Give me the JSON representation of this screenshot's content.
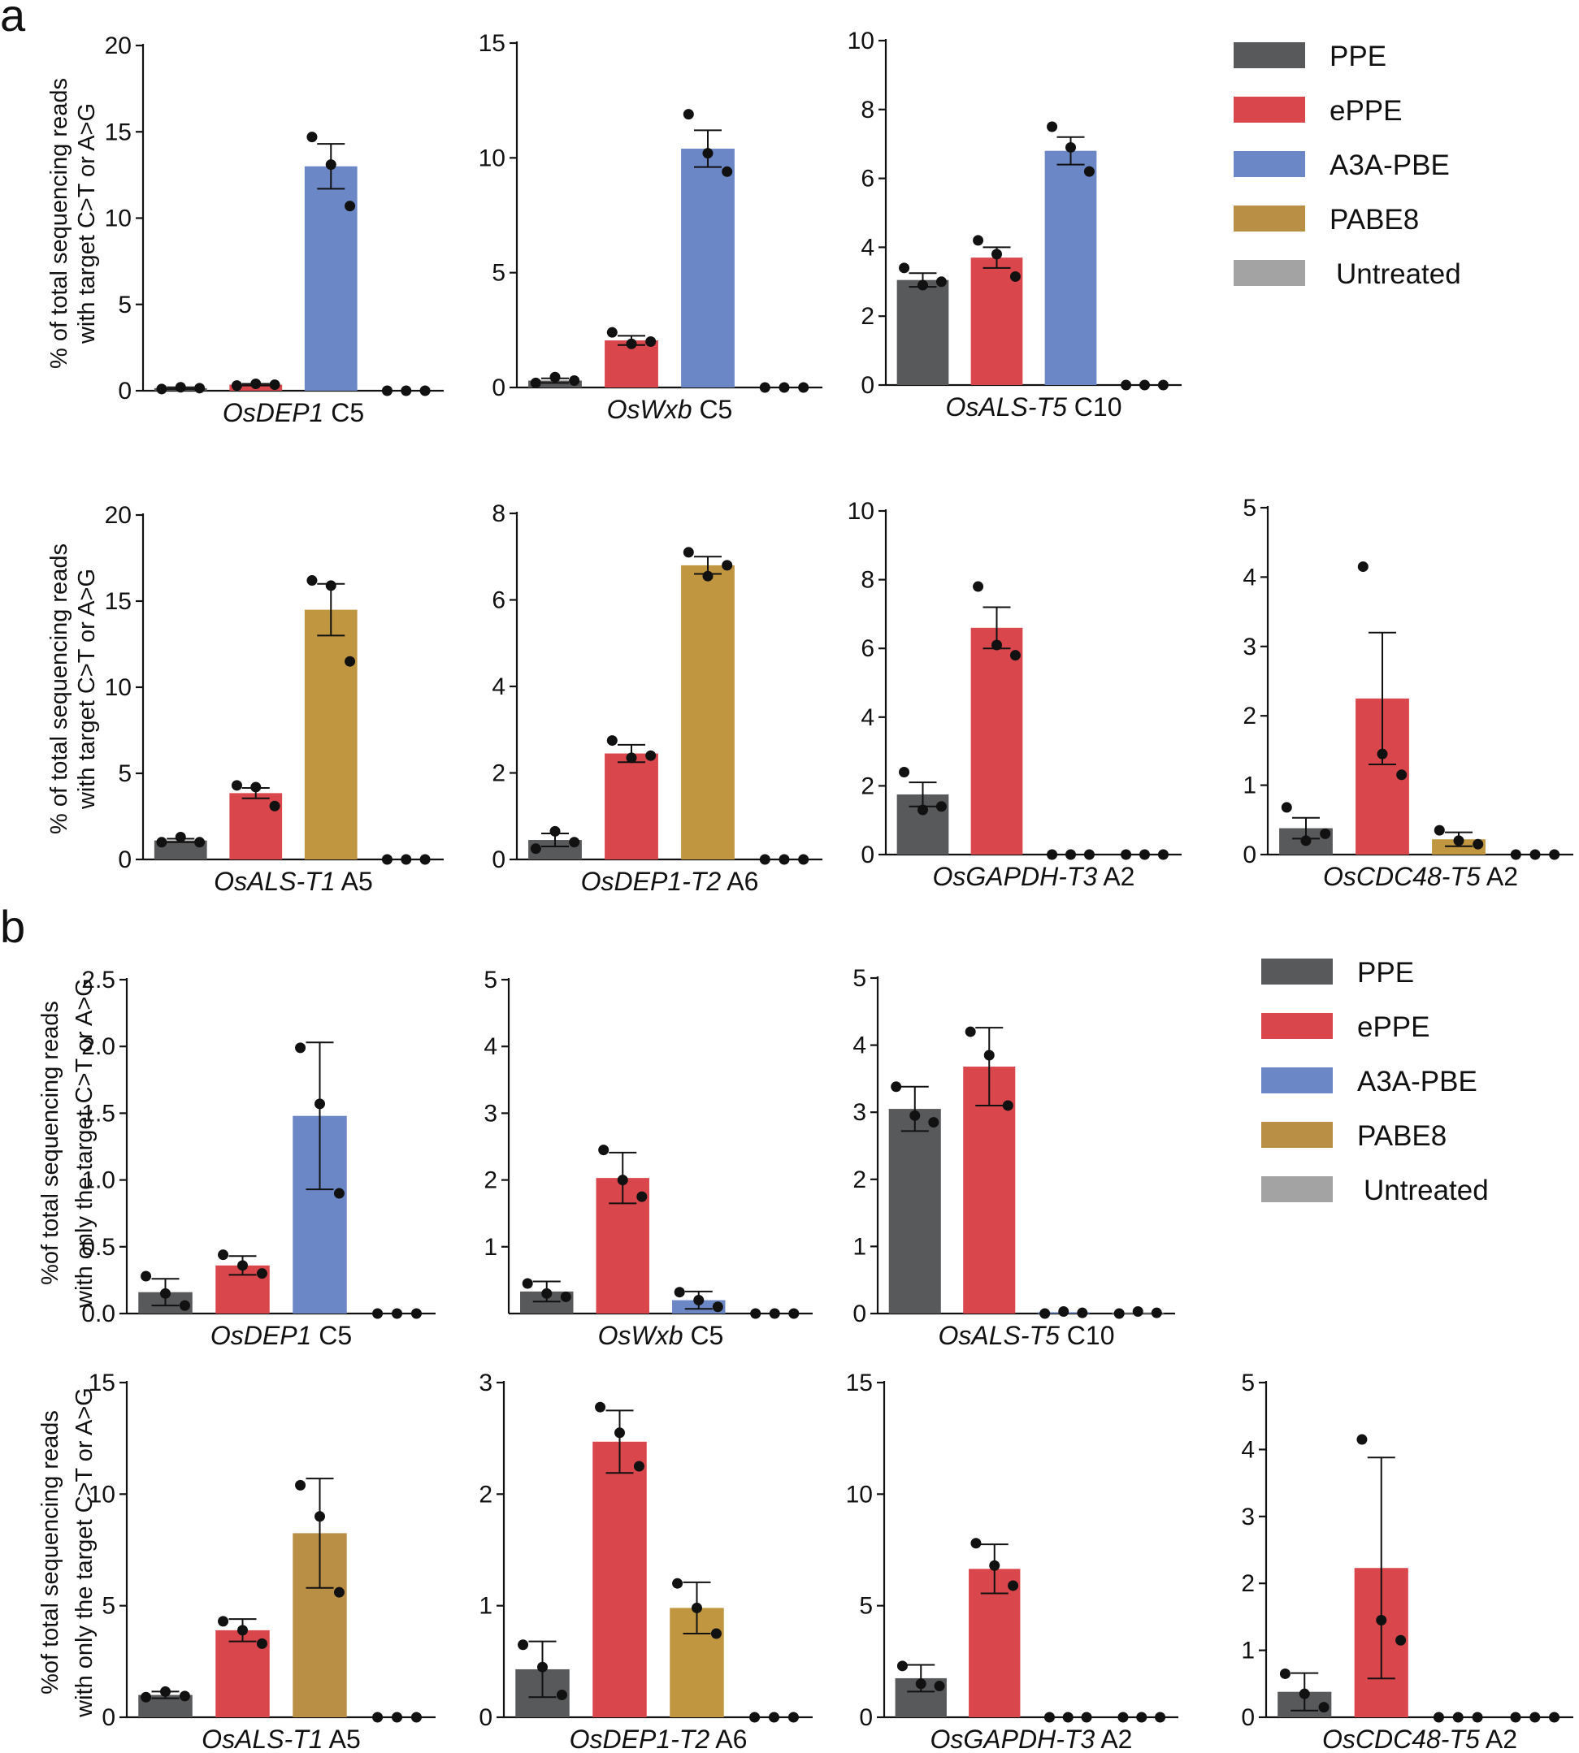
{
  "figure": {
    "panel_labels": [
      "a",
      "b"
    ],
    "ylabel_a": [
      "% of total sequencing reads",
      "with target C>T or A>G"
    ],
    "ylabel_b": [
      "%of total sequencing reads",
      "with only the target C>T or A>G"
    ]
  },
  "legend": {
    "items": [
      {
        "label": "PPE",
        "color": "#58595b"
      },
      {
        "label": "ePPE",
        "color": "#d9464c"
      },
      {
        "label": "A3A-PBE",
        "color": "#6b87c6"
      },
      {
        "label": "PABE8",
        "color": "#b98f45"
      },
      {
        "label": "Untreated",
        "color": "#a3a3a3"
      }
    ]
  },
  "chart_data": [
    {
      "type": "bar",
      "panel": "a",
      "title_gene": "OsDEP1",
      "title_site": "C5",
      "ylim": [
        0,
        20
      ],
      "yticks": [
        "0",
        "5",
        "10",
        "15",
        "20"
      ],
      "series": [
        {
          "name": "PPE",
          "color": "#58595b",
          "mean": 0.15,
          "sem": 0.05,
          "points": [
            0.1,
            0.2,
            0.15
          ]
        },
        {
          "name": "ePPE",
          "color": "#d9464c",
          "mean": 0.35,
          "sem": 0.05,
          "points": [
            0.3,
            0.4,
            0.35
          ]
        },
        {
          "name": "A3A-PBE",
          "color": "#6b87c6",
          "mean": 13.0,
          "sem": 1.3,
          "points": [
            14.7,
            13.1,
            10.7
          ]
        },
        {
          "name": "Untreated",
          "color": "#a3a3a3",
          "mean": 0,
          "sem": 0,
          "points": [
            0,
            0,
            0
          ]
        }
      ]
    },
    {
      "type": "bar",
      "panel": "a",
      "title_gene": "OsWxb",
      "title_site": "C5",
      "ylim": [
        0,
        15
      ],
      "yticks": [
        "0",
        "5",
        "10",
        "15"
      ],
      "series": [
        {
          "name": "PPE",
          "color": "#58595b",
          "mean": 0.3,
          "sem": 0.1,
          "points": [
            0.2,
            0.45,
            0.3
          ]
        },
        {
          "name": "ePPE",
          "color": "#d9464c",
          "mean": 2.05,
          "sem": 0.2,
          "points": [
            2.4,
            1.9,
            2.0
          ]
        },
        {
          "name": "A3A-PBE",
          "color": "#6b87c6",
          "mean": 10.4,
          "sem": 0.8,
          "points": [
            11.9,
            10.2,
            9.4
          ]
        },
        {
          "name": "Untreated",
          "color": "#a3a3a3",
          "mean": 0,
          "sem": 0,
          "points": [
            0,
            0,
            0
          ]
        }
      ]
    },
    {
      "type": "bar",
      "panel": "a",
      "title_gene": "OsALS-T5",
      "title_site": "C10",
      "ylim": [
        0,
        10
      ],
      "yticks": [
        "0",
        "2",
        "4",
        "6",
        "8",
        "10"
      ],
      "series": [
        {
          "name": "PPE",
          "color": "#58595b",
          "mean": 3.05,
          "sem": 0.2,
          "points": [
            3.4,
            2.9,
            3.0
          ]
        },
        {
          "name": "ePPE",
          "color": "#d9464c",
          "mean": 3.7,
          "sem": 0.3,
          "points": [
            4.2,
            3.8,
            3.15
          ]
        },
        {
          "name": "A3A-PBE",
          "color": "#6b87c6",
          "mean": 6.8,
          "sem": 0.4,
          "points": [
            7.5,
            6.9,
            6.2
          ]
        },
        {
          "name": "Untreated",
          "color": "#a3a3a3",
          "mean": 0,
          "sem": 0,
          "points": [
            0,
            0,
            0
          ]
        }
      ]
    },
    {
      "type": "bar",
      "panel": "a",
      "title_gene": "OsALS-T1",
      "title_site": "A5",
      "ylim": [
        0,
        20
      ],
      "yticks": [
        "0",
        "5",
        "10",
        "15",
        "20"
      ],
      "series": [
        {
          "name": "PPE",
          "color": "#58595b",
          "mean": 1.1,
          "sem": 0.1,
          "points": [
            1.0,
            1.3,
            1.0
          ]
        },
        {
          "name": "ePPE",
          "color": "#d9464c",
          "mean": 3.85,
          "sem": 0.3,
          "points": [
            4.3,
            4.2,
            3.1
          ]
        },
        {
          "name": "PABE8",
          "color": "#c09640",
          "mean": 14.5,
          "sem": 1.5,
          "points": [
            16.2,
            15.9,
            11.5
          ]
        },
        {
          "name": "Untreated",
          "color": "#a3a3a3",
          "mean": 0,
          "sem": 0,
          "points": [
            0,
            0,
            0
          ]
        }
      ]
    },
    {
      "type": "bar",
      "panel": "a",
      "title_gene": "OsDEP1-T2",
      "title_site": "A6",
      "ylim": [
        0,
        8
      ],
      "yticks": [
        "0",
        "2",
        "4",
        "6",
        "8"
      ],
      "series": [
        {
          "name": "PPE",
          "color": "#58595b",
          "mean": 0.45,
          "sem": 0.15,
          "points": [
            0.25,
            0.65,
            0.4
          ]
        },
        {
          "name": "ePPE",
          "color": "#d9464c",
          "mean": 2.45,
          "sem": 0.2,
          "points": [
            2.75,
            2.35,
            2.4
          ]
        },
        {
          "name": "PABE8",
          "color": "#c09640",
          "mean": 6.8,
          "sem": 0.2,
          "points": [
            7.1,
            6.55,
            6.8
          ]
        },
        {
          "name": "Untreated",
          "color": "#a3a3a3",
          "mean": 0,
          "sem": 0,
          "points": [
            0,
            0,
            0
          ]
        }
      ]
    },
    {
      "type": "bar",
      "panel": "a",
      "title_gene": "OsGAPDH-T3",
      "title_site": "A2",
      "ylim": [
        0,
        10
      ],
      "yticks": [
        "0",
        "2",
        "4",
        "6",
        "8",
        "10"
      ],
      "series": [
        {
          "name": "PPE",
          "color": "#58595b",
          "mean": 1.75,
          "sem": 0.35,
          "points": [
            2.4,
            1.3,
            1.4
          ]
        },
        {
          "name": "ePPE",
          "color": "#d9464c",
          "mean": 6.6,
          "sem": 0.6,
          "points": [
            7.8,
            6.1,
            5.8
          ]
        },
        {
          "name": "PABE8",
          "color": "#c09640",
          "mean": 0,
          "sem": 0,
          "points": [
            0,
            0,
            0
          ]
        },
        {
          "name": "Untreated",
          "color": "#a3a3a3",
          "mean": 0,
          "sem": 0,
          "points": [
            0,
            0,
            0
          ]
        }
      ]
    },
    {
      "type": "bar",
      "panel": "a",
      "title_gene": "OsCDC48-T5",
      "title_site": "A2",
      "ylim": [
        0,
        5
      ],
      "yticks": [
        "0",
        "1",
        "2",
        "3",
        "4",
        "5"
      ],
      "series": [
        {
          "name": "PPE",
          "color": "#58595b",
          "mean": 0.38,
          "sem": 0.15,
          "points": [
            0.68,
            0.2,
            0.3
          ]
        },
        {
          "name": "ePPE",
          "color": "#d9464c",
          "mean": 2.25,
          "sem": 0.95,
          "points": [
            4.15,
            1.45,
            1.15
          ]
        },
        {
          "name": "PABE8",
          "color": "#c09640",
          "mean": 0.22,
          "sem": 0.1,
          "points": [
            0.35,
            0.2,
            0.15
          ]
        },
        {
          "name": "Untreated",
          "color": "#a3a3a3",
          "mean": 0,
          "sem": 0,
          "points": [
            0,
            0,
            0
          ]
        }
      ]
    },
    {
      "type": "bar",
      "panel": "b",
      "title_gene": "OsDEP1",
      "title_site": "C5",
      "ylim": [
        0,
        2.5
      ],
      "yticks": [
        "0.0",
        "0.5",
        "1.0",
        "1.5",
        "2.0",
        "2.5"
      ],
      "series": [
        {
          "name": "PPE",
          "color": "#58595b",
          "mean": 0.16,
          "sem": 0.1,
          "points": [
            0.28,
            0.15,
            0.06
          ]
        },
        {
          "name": "ePPE",
          "color": "#d9464c",
          "mean": 0.36,
          "sem": 0.07,
          "points": [
            0.44,
            0.36,
            0.3
          ]
        },
        {
          "name": "A3A-PBE",
          "color": "#6b87c6",
          "mean": 1.48,
          "sem": 0.55,
          "points": [
            1.99,
            1.57,
            0.9
          ]
        },
        {
          "name": "Untreated",
          "color": "#a3a3a3",
          "mean": 0,
          "sem": 0,
          "points": [
            0,
            0,
            0
          ]
        }
      ]
    },
    {
      "type": "bar",
      "panel": "b",
      "title_gene": "OsWxb",
      "title_site": "C5",
      "ylim": [
        0,
        5
      ],
      "yticks": [
        "1",
        "2",
        "3",
        "4",
        "5"
      ],
      "series": [
        {
          "name": "PPE",
          "color": "#58595b",
          "mean": 0.33,
          "sem": 0.15,
          "points": [
            0.45,
            0.3,
            0.25
          ]
        },
        {
          "name": "ePPE",
          "color": "#d9464c",
          "mean": 2.03,
          "sem": 0.38,
          "points": [
            2.45,
            2.0,
            1.75
          ]
        },
        {
          "name": "A3A-PBE",
          "color": "#6b87c6",
          "mean": 0.2,
          "sem": 0.13,
          "points": [
            0.32,
            0.2,
            0.1
          ]
        },
        {
          "name": "Untreated",
          "color": "#a3a3a3",
          "mean": 0,
          "sem": 0,
          "points": [
            0,
            0,
            0
          ]
        }
      ]
    },
    {
      "type": "bar",
      "panel": "b",
      "title_gene": "OsALS-T5",
      "title_site": "C10",
      "ylim": [
        0,
        5
      ],
      "yticks": [
        "0",
        "1",
        "2",
        "3",
        "4",
        "5"
      ],
      "series": [
        {
          "name": "PPE",
          "color": "#58595b",
          "mean": 3.05,
          "sem": 0.33,
          "points": [
            3.38,
            2.95,
            2.85
          ]
        },
        {
          "name": "ePPE",
          "color": "#d9464c",
          "mean": 3.68,
          "sem": 0.58,
          "points": [
            4.2,
            3.85,
            3.1
          ]
        },
        {
          "name": "A3A-PBE",
          "color": "#6b87c6",
          "mean": 0.02,
          "sem": 0,
          "points": [
            0.0,
            0.03,
            0.01
          ]
        },
        {
          "name": "Untreated",
          "color": "#a3a3a3",
          "mean": 0.02,
          "sem": 0,
          "points": [
            0.0,
            0.03,
            0.01
          ]
        }
      ]
    },
    {
      "type": "bar",
      "panel": "b",
      "title_gene": "OsALS-T1",
      "title_site": "A5",
      "ylim": [
        0,
        15
      ],
      "yticks": [
        "0",
        "5",
        "10",
        "15"
      ],
      "series": [
        {
          "name": "PPE",
          "color": "#58595b",
          "mean": 1.0,
          "sem": 0.15,
          "points": [
            0.9,
            1.15,
            0.95
          ]
        },
        {
          "name": "ePPE",
          "color": "#d9464c",
          "mean": 3.9,
          "sem": 0.5,
          "points": [
            4.3,
            3.9,
            3.3
          ]
        },
        {
          "name": "PABE8",
          "color": "#b98f45",
          "mean": 8.25,
          "sem": 2.45,
          "points": [
            10.4,
            9.0,
            5.6
          ]
        },
        {
          "name": "Untreated",
          "color": "#a3a3a3",
          "mean": 0,
          "sem": 0,
          "points": [
            0,
            0,
            0
          ]
        }
      ]
    },
    {
      "type": "bar",
      "panel": "b",
      "title_gene": "OsDEP1-T2",
      "title_site": "A6",
      "ylim": [
        0,
        3
      ],
      "yticks": [
        "0",
        "1",
        "2",
        "3"
      ],
      "series": [
        {
          "name": "PPE",
          "color": "#58595b",
          "mean": 0.43,
          "sem": 0.25,
          "points": [
            0.65,
            0.45,
            0.2
          ]
        },
        {
          "name": "ePPE",
          "color": "#d9464c",
          "mean": 2.47,
          "sem": 0.28,
          "points": [
            2.78,
            2.55,
            2.25
          ]
        },
        {
          "name": "PABE8",
          "color": "#c09640",
          "mean": 0.98,
          "sem": 0.23,
          "points": [
            1.2,
            0.98,
            0.75
          ]
        },
        {
          "name": "Untreated",
          "color": "#a3a3a3",
          "mean": 0,
          "sem": 0,
          "points": [
            0,
            0,
            0
          ]
        }
      ]
    },
    {
      "type": "bar",
      "panel": "b",
      "title_gene": "OsGAPDH-T3",
      "title_site": "A2",
      "ylim": [
        0,
        15
      ],
      "yticks": [
        "0",
        "5",
        "10",
        "15"
      ],
      "series": [
        {
          "name": "PPE",
          "color": "#58595b",
          "mean": 1.75,
          "sem": 0.6,
          "points": [
            2.3,
            1.5,
            1.4
          ]
        },
        {
          "name": "ePPE",
          "color": "#d9464c",
          "mean": 6.65,
          "sem": 1.1,
          "points": [
            7.8,
            6.8,
            5.9
          ]
        },
        {
          "name": "PABE8",
          "color": "#c09640",
          "mean": 0,
          "sem": 0,
          "points": [
            0,
            0,
            0
          ]
        },
        {
          "name": "Untreated",
          "color": "#a3a3a3",
          "mean": 0,
          "sem": 0,
          "points": [
            0,
            0,
            0
          ]
        }
      ]
    },
    {
      "type": "bar",
      "panel": "b",
      "title_gene": "OsCDC48-T5",
      "title_site": "A2",
      "ylim": [
        0,
        5
      ],
      "yticks": [
        "0",
        "1",
        "2",
        "3",
        "4",
        "5"
      ],
      "series": [
        {
          "name": "PPE",
          "color": "#58595b",
          "mean": 0.38,
          "sem": 0.28,
          "points": [
            0.65,
            0.35,
            0.15
          ]
        },
        {
          "name": "ePPE",
          "color": "#d9464c",
          "mean": 2.23,
          "sem": 1.65,
          "points": [
            4.15,
            1.45,
            1.15
          ]
        },
        {
          "name": "PABE8",
          "color": "#c09640",
          "mean": 0,
          "sem": 0,
          "points": [
            0,
            0,
            0
          ]
        },
        {
          "name": "Untreated",
          "color": "#a3a3a3",
          "mean": 0,
          "sem": 0,
          "points": [
            0,
            0,
            0
          ]
        }
      ]
    }
  ]
}
